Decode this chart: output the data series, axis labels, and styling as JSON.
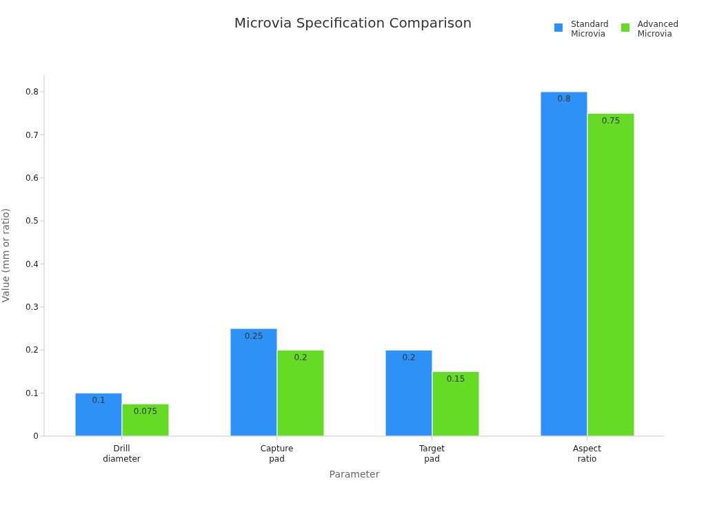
{
  "chart_data": {
    "type": "bar",
    "title": "Microvia Specification Comparison",
    "xlabel": "Parameter",
    "ylabel": "Value (mm or ratio)",
    "categories": [
      "Drill diameter",
      "Capture pad",
      "Target pad",
      "Aspect ratio"
    ],
    "series": [
      {
        "name": "Standard Microvia",
        "color": "#2e91f5",
        "values": [
          0.1,
          0.25,
          0.2,
          0.8
        ]
      },
      {
        "name": "Advanced Microvia",
        "color": "#66db26",
        "values": [
          0.075,
          0.2,
          0.15,
          0.75
        ]
      }
    ],
    "ylim": [
      0,
      0.84
    ],
    "yticks": [
      0,
      0.1,
      0.2,
      0.3,
      0.4,
      0.5,
      0.6,
      0.7,
      0.8
    ],
    "grid": false,
    "legend": "top right",
    "data_labels": true
  }
}
